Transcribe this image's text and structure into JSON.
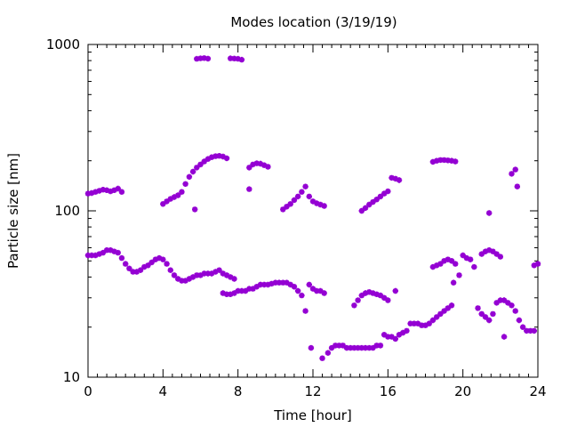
{
  "chart_data": {
    "type": "scatter",
    "title": "Modes location (3/19/19)",
    "xlabel": "Time [hour]",
    "ylabel": "Particle size [nm]",
    "xlim": [
      0,
      24
    ],
    "ylim": [
      10,
      1000
    ],
    "yscale": "log",
    "x_ticks": [
      "0",
      "4",
      "8",
      "12",
      "16",
      "20",
      "24"
    ],
    "y_ticks": [
      "10",
      "100",
      "1000"
    ],
    "grid": false,
    "legend": "none",
    "marker": "asterisk",
    "series_color": "#9400d3",
    "points": [
      [
        0.0,
        54
      ],
      [
        0.2,
        54
      ],
      [
        0.4,
        54
      ],
      [
        0.6,
        55
      ],
      [
        0.8,
        56
      ],
      [
        1.0,
        58
      ],
      [
        1.2,
        58
      ],
      [
        1.4,
        57
      ],
      [
        1.6,
        56
      ],
      [
        1.8,
        52
      ],
      [
        2.0,
        48
      ],
      [
        2.2,
        45
      ],
      [
        2.4,
        43
      ],
      [
        2.6,
        43
      ],
      [
        2.8,
        44
      ],
      [
        3.0,
        46
      ],
      [
        3.2,
        47
      ],
      [
        3.4,
        49
      ],
      [
        3.6,
        51
      ],
      [
        3.8,
        52
      ],
      [
        4.0,
        51
      ],
      [
        4.2,
        48
      ],
      [
        4.4,
        44
      ],
      [
        4.6,
        41
      ],
      [
        4.8,
        39
      ],
      [
        5.0,
        38
      ],
      [
        5.2,
        38
      ],
      [
        5.4,
        39
      ],
      [
        5.6,
        40
      ],
      [
        5.8,
        41
      ],
      [
        6.0,
        41
      ],
      [
        6.2,
        42
      ],
      [
        6.4,
        42
      ],
      [
        6.6,
        42
      ],
      [
        6.8,
        43
      ],
      [
        7.0,
        44
      ],
      [
        7.2,
        42
      ],
      [
        7.4,
        41
      ],
      [
        7.6,
        40
      ],
      [
        7.8,
        39
      ],
      [
        7.2,
        32
      ],
      [
        7.4,
        31.5
      ],
      [
        7.6,
        31.5
      ],
      [
        7.8,
        32
      ],
      [
        8.0,
        33
      ],
      [
        8.2,
        33
      ],
      [
        8.4,
        33
      ],
      [
        8.6,
        34
      ],
      [
        8.8,
        34
      ],
      [
        9.0,
        35
      ],
      [
        9.2,
        36
      ],
      [
        9.4,
        36
      ],
      [
        9.6,
        36
      ],
      [
        9.8,
        36.5
      ],
      [
        10.0,
        37
      ],
      [
        10.2,
        37
      ],
      [
        10.4,
        37
      ],
      [
        10.6,
        37
      ],
      [
        10.8,
        36
      ],
      [
        11.0,
        35
      ],
      [
        11.2,
        33
      ],
      [
        11.4,
        31
      ],
      [
        11.6,
        25
      ],
      [
        11.8,
        36
      ],
      [
        12.0,
        34
      ],
      [
        12.2,
        33
      ],
      [
        12.4,
        33
      ],
      [
        12.6,
        32
      ],
      [
        11.9,
        15
      ],
      [
        12.5,
        13
      ],
      [
        12.8,
        14
      ],
      [
        13.0,
        15
      ],
      [
        13.2,
        15.5
      ],
      [
        13.4,
        15.5
      ],
      [
        13.6,
        15.5
      ],
      [
        13.8,
        15
      ],
      [
        14.0,
        15
      ],
      [
        14.2,
        15
      ],
      [
        14.4,
        15
      ],
      [
        14.6,
        15
      ],
      [
        14.8,
        15
      ],
      [
        15.0,
        15
      ],
      [
        15.2,
        15
      ],
      [
        15.4,
        15.5
      ],
      [
        15.6,
        15.5
      ],
      [
        14.2,
        27
      ],
      [
        14.4,
        29
      ],
      [
        14.6,
        31
      ],
      [
        14.8,
        32
      ],
      [
        15.0,
        32.5
      ],
      [
        15.2,
        32
      ],
      [
        15.4,
        31.5
      ],
      [
        15.6,
        31
      ],
      [
        15.8,
        30
      ],
      [
        16.0,
        29
      ],
      [
        16.4,
        33
      ],
      [
        15.8,
        18
      ],
      [
        16.0,
        17.5
      ],
      [
        16.2,
        17.5
      ],
      [
        16.4,
        17
      ],
      [
        16.6,
        18
      ],
      [
        16.8,
        18.5
      ],
      [
        17.0,
        19
      ],
      [
        17.2,
        21
      ],
      [
        17.4,
        21
      ],
      [
        17.6,
        21
      ],
      [
        17.8,
        20.5
      ],
      [
        18.0,
        20.5
      ],
      [
        18.2,
        21
      ],
      [
        18.4,
        22
      ],
      [
        18.6,
        23
      ],
      [
        18.8,
        24
      ],
      [
        19.0,
        25
      ],
      [
        19.2,
        26
      ],
      [
        19.4,
        27
      ],
      [
        18.4,
        46
      ],
      [
        18.6,
        47
      ],
      [
        18.8,
        48
      ],
      [
        19.0,
        50
      ],
      [
        19.2,
        51
      ],
      [
        19.4,
        50
      ],
      [
        19.6,
        48
      ],
      [
        19.8,
        41
      ],
      [
        19.5,
        37
      ],
      [
        20.0,
        54
      ],
      [
        20.2,
        52
      ],
      [
        20.4,
        51
      ],
      [
        20.6,
        46
      ],
      [
        20.8,
        26
      ],
      [
        21.0,
        24
      ],
      [
        21.2,
        23
      ],
      [
        21.4,
        22
      ],
      [
        21.6,
        24
      ],
      [
        21.8,
        28
      ],
      [
        22.0,
        29
      ],
      [
        22.2,
        29
      ],
      [
        22.4,
        28
      ],
      [
        22.6,
        27
      ],
      [
        22.8,
        25
      ],
      [
        23.0,
        22
      ],
      [
        23.2,
        20
      ],
      [
        23.4,
        19
      ],
      [
        23.6,
        19
      ],
      [
        23.8,
        19
      ],
      [
        22.2,
        17.5
      ],
      [
        21.0,
        55
      ],
      [
        21.2,
        57
      ],
      [
        21.4,
        58
      ],
      [
        21.6,
        57
      ],
      [
        21.8,
        55
      ],
      [
        22.0,
        53
      ],
      [
        23.8,
        47
      ],
      [
        24.0,
        48
      ],
      [
        0.0,
        127
      ],
      [
        0.2,
        128
      ],
      [
        0.4,
        130
      ],
      [
        0.6,
        132
      ],
      [
        0.8,
        134
      ],
      [
        1.0,
        133
      ],
      [
        1.2,
        131
      ],
      [
        1.4,
        133
      ],
      [
        1.6,
        136
      ],
      [
        1.8,
        130
      ],
      [
        4.0,
        110
      ],
      [
        4.2,
        114
      ],
      [
        4.4,
        118
      ],
      [
        4.6,
        121
      ],
      [
        4.8,
        124
      ],
      [
        5.0,
        130
      ],
      [
        5.2,
        145
      ],
      [
        5.4,
        160
      ],
      [
        5.6,
        172
      ],
      [
        5.8,
        182
      ],
      [
        6.0,
        190
      ],
      [
        6.2,
        198
      ],
      [
        6.4,
        205
      ],
      [
        6.6,
        210
      ],
      [
        6.8,
        213
      ],
      [
        7.0,
        214
      ],
      [
        7.2,
        212
      ],
      [
        7.4,
        207
      ],
      [
        5.7,
        102
      ],
      [
        8.6,
        135
      ],
      [
        8.6,
        182
      ],
      [
        8.8,
        190
      ],
      [
        9.0,
        193
      ],
      [
        9.2,
        192
      ],
      [
        9.4,
        188
      ],
      [
        9.6,
        184
      ],
      [
        10.4,
        102
      ],
      [
        10.6,
        106
      ],
      [
        10.8,
        110
      ],
      [
        11.0,
        116
      ],
      [
        11.2,
        122
      ],
      [
        11.4,
        130
      ],
      [
        11.6,
        140
      ],
      [
        11.8,
        122
      ],
      [
        12.0,
        114
      ],
      [
        12.2,
        111
      ],
      [
        12.4,
        109
      ],
      [
        12.6,
        107
      ],
      [
        14.6,
        100
      ],
      [
        14.8,
        104
      ],
      [
        15.0,
        109
      ],
      [
        15.2,
        113
      ],
      [
        15.4,
        117
      ],
      [
        15.6,
        122
      ],
      [
        15.8,
        127
      ],
      [
        16.0,
        131
      ],
      [
        16.2,
        158
      ],
      [
        16.4,
        156
      ],
      [
        16.6,
        153
      ],
      [
        18.4,
        197
      ],
      [
        18.6,
        200
      ],
      [
        18.8,
        202
      ],
      [
        19.0,
        202
      ],
      [
        19.2,
        201
      ],
      [
        19.4,
        200
      ],
      [
        19.6,
        198
      ],
      [
        21.4,
        97
      ],
      [
        22.6,
        167
      ],
      [
        22.8,
        177
      ],
      [
        22.9,
        140
      ],
      [
        5.8,
        820
      ],
      [
        6.0,
        825
      ],
      [
        6.2,
        828
      ],
      [
        6.4,
        822
      ],
      [
        7.6,
        825
      ],
      [
        7.8,
        823
      ],
      [
        8.0,
        820
      ],
      [
        8.2,
        810
      ]
    ]
  }
}
